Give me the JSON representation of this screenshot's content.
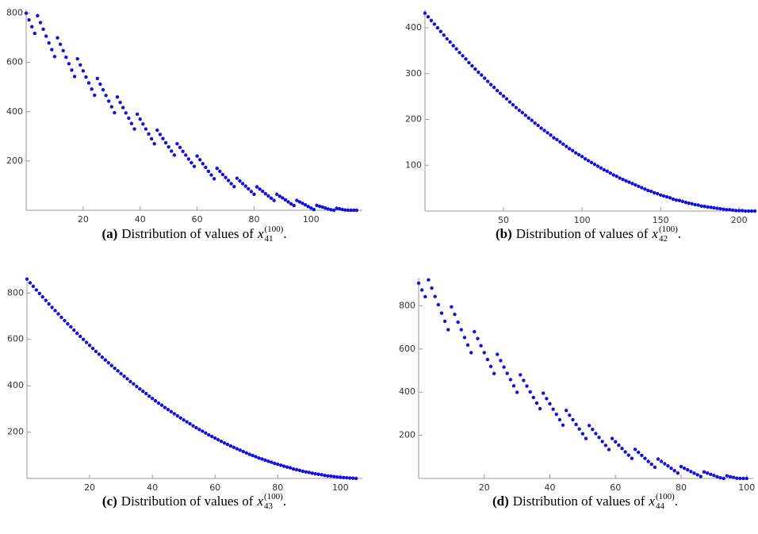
{
  "chart_data": [
    {
      "type": "scatter",
      "caption_label": "(a)",
      "caption": "Distribution of values of",
      "caption_var": "x",
      "caption_sub": "41",
      "caption_sup": "(100)",
      "caption_end": ".",
      "xlim": [
        0,
        118
      ],
      "ylim": [
        0,
        815
      ],
      "xticks": [
        20,
        40,
        60,
        80,
        100
      ],
      "yticks": [
        200,
        400,
        600,
        800
      ],
      "series": [
        {
          "color": "#1212e0",
          "x": [
            0,
            1,
            2,
            3,
            4,
            5,
            6,
            7,
            8,
            9,
            10,
            11,
            12,
            13,
            14,
            15,
            16,
            17,
            18,
            19,
            20,
            21,
            22,
            23,
            24,
            25,
            26,
            27,
            28,
            29,
            30,
            31,
            32,
            33,
            34,
            35,
            36,
            37,
            38,
            39,
            40,
            41,
            42,
            43,
            44,
            45,
            46,
            47,
            48,
            49,
            50,
            51,
            52,
            53,
            54,
            55,
            56,
            57,
            58,
            59,
            60,
            61,
            62,
            63,
            64,
            65,
            66,
            67,
            68,
            69,
            70,
            71,
            72,
            73,
            74,
            75,
            76,
            77,
            78,
            79,
            80,
            81,
            82,
            83,
            84,
            85,
            86,
            87,
            88,
            89,
            90,
            91,
            92,
            93,
            94,
            95,
            96,
            97,
            98,
            99,
            100,
            101,
            102,
            103,
            104,
            105,
            106,
            107,
            108,
            109,
            110,
            111,
            112,
            113,
            114,
            115,
            116
          ],
          "values": [
            800,
            773,
            745,
            718,
            790,
            762,
            735,
            707,
            679,
            652,
            624,
            700,
            674,
            648,
            621,
            595,
            569,
            543,
            615,
            590,
            566,
            541,
            517,
            492,
            467,
            535,
            512,
            489,
            466,
            443,
            420,
            396,
            460,
            438,
            417,
            395,
            374,
            352,
            330,
            390,
            370,
            350,
            330,
            310,
            290,
            270,
            325,
            308,
            291,
            274,
            257,
            240,
            224,
            270,
            255,
            239,
            224,
            208,
            193,
            178,
            220,
            205,
            189,
            174,
            158,
            143,
            128,
            170,
            158,
            145,
            133,
            121,
            108,
            96,
            130,
            119,
            108,
            98,
            87,
            76,
            65,
            95,
            86,
            77,
            67,
            58,
            49,
            40,
            65,
            57,
            50,
            42,
            34,
            26,
            19,
            40,
            34,
            28,
            22,
            15,
            9,
            3,
            20,
            16,
            13,
            9,
            5,
            2,
            0,
            8,
            6,
            3,
            1,
            0,
            0,
            0,
            0
          ]
        }
      ]
    },
    {
      "type": "scatter",
      "caption_label": "(b)",
      "caption": "Distribution of values of",
      "caption_var": "x",
      "caption_sub": "42",
      "caption_sup": "(100)",
      "caption_end": ".",
      "xlim": [
        0,
        210
      ],
      "ylim": [
        0,
        440
      ],
      "xticks": [
        50,
        100,
        150,
        200
      ],
      "yticks": [
        100,
        200,
        300,
        400
      ],
      "series": [
        {
          "color": "#1212e0",
          "x": [
            0,
            2,
            4,
            6,
            8,
            10,
            12,
            14,
            16,
            18,
            20,
            22,
            24,
            26,
            28,
            30,
            32,
            34,
            36,
            38,
            40,
            42,
            44,
            46,
            48,
            50,
            52,
            54,
            56,
            58,
            60,
            62,
            64,
            66,
            68,
            70,
            72,
            74,
            76,
            78,
            80,
            82,
            84,
            86,
            88,
            90,
            92,
            94,
            96,
            98,
            100,
            102,
            104,
            106,
            108,
            110,
            112,
            114,
            116,
            118,
            120,
            122,
            124,
            126,
            128,
            130,
            132,
            134,
            136,
            138,
            140,
            142,
            144,
            146,
            148,
            150,
            152,
            154,
            156,
            158,
            160,
            162,
            164,
            166,
            168,
            170,
            172,
            174,
            176,
            178,
            180,
            182,
            184,
            186,
            188,
            190,
            192,
            194,
            196,
            198,
            200,
            202,
            204,
            206,
            208,
            210
          ],
          "values": [
            432,
            424,
            416,
            408,
            400,
            392,
            384,
            376,
            369,
            361,
            354,
            346,
            339,
            332,
            324,
            317,
            310,
            303,
            297,
            290,
            283,
            276,
            270,
            263,
            257,
            251,
            245,
            238,
            232,
            226,
            220,
            215,
            209,
            203,
            198,
            192,
            187,
            181,
            176,
            171,
            166,
            160,
            156,
            151,
            146,
            141,
            136,
            132,
            127,
            123,
            119,
            114,
            110,
            106,
            102,
            98,
            94,
            90,
            87,
            83,
            79,
            76,
            72,
            69,
            66,
            63,
            60,
            57,
            54,
            51,
            48,
            45,
            43,
            40,
            38,
            35,
            33,
            31,
            29,
            26,
            24,
            23,
            21,
            19,
            17,
            16,
            14,
            13,
            11,
            10,
            9,
            8,
            7,
            6,
            5,
            4,
            3,
            3,
            2,
            1,
            1,
            1,
            0,
            0,
            0,
            0
          ]
        }
      ]
    },
    {
      "type": "scatter",
      "caption_label": "(c)",
      "caption": "Distribution of values of",
      "caption_var": "x",
      "caption_sub": "43",
      "caption_sup": "(100)",
      "caption_end": ".",
      "xlim": [
        0,
        107
      ],
      "ylim": [
        0,
        866
      ],
      "xticks": [
        20,
        40,
        60,
        80,
        100
      ],
      "yticks": [
        200,
        400,
        600,
        800
      ],
      "series": [
        {
          "color": "#1212e0",
          "x": [
            0,
            1,
            2,
            3,
            4,
            5,
            6,
            7,
            8,
            9,
            10,
            11,
            12,
            13,
            14,
            15,
            16,
            17,
            18,
            19,
            20,
            21,
            22,
            23,
            24,
            25,
            26,
            27,
            28,
            29,
            30,
            31,
            32,
            33,
            34,
            35,
            36,
            37,
            38,
            39,
            40,
            41,
            42,
            43,
            44,
            45,
            46,
            47,
            48,
            49,
            50,
            51,
            52,
            53,
            54,
            55,
            56,
            57,
            58,
            59,
            60,
            61,
            62,
            63,
            64,
            65,
            66,
            67,
            68,
            69,
            70,
            71,
            72,
            73,
            74,
            75,
            76,
            77,
            78,
            79,
            80,
            81,
            82,
            83,
            84,
            85,
            86,
            87,
            88,
            89,
            90,
            91,
            92,
            93,
            94,
            95,
            96,
            97,
            98,
            99,
            100,
            101,
            102,
            103,
            104,
            105
          ],
          "values": [
            860,
            844,
            829,
            813,
            798,
            783,
            768,
            753,
            738,
            724,
            710,
            695,
            681,
            667,
            654,
            640,
            626,
            613,
            600,
            587,
            574,
            561,
            548,
            536,
            523,
            511,
            499,
            487,
            475,
            464,
            452,
            441,
            430,
            418,
            408,
            397,
            386,
            376,
            366,
            355,
            345,
            335,
            325,
            316,
            306,
            297,
            288,
            279,
            270,
            261,
            252,
            244,
            236,
            227,
            219,
            211,
            204,
            196,
            188,
            181,
            174,
            167,
            160,
            153,
            147,
            140,
            134,
            128,
            122,
            116,
            110,
            104,
            99,
            94,
            88,
            84,
            79,
            74,
            70,
            65,
            61,
            57,
            53,
            49,
            46,
            41,
            38,
            35,
            31,
            28,
            26,
            23,
            20,
            18,
            16,
            13,
            11,
            10,
            8,
            6,
            5,
            4,
            3,
            2,
            1,
            0
          ]
        }
      ]
    },
    {
      "type": "scatter",
      "caption_label": "(d)",
      "caption": "Distribution of values of",
      "caption_var": "x",
      "caption_sub": "44",
      "caption_sup": "(100)",
      "caption_end": ".",
      "xlim": [
        0,
        102
      ],
      "ylim": [
        0,
        930
      ],
      "xticks": [
        20,
        40,
        60,
        80,
        100
      ],
      "yticks": [
        200,
        400,
        600,
        800
      ],
      "series": [
        {
          "color": "#1212e0",
          "x": [
            0,
            1,
            2,
            3,
            4,
            5,
            6,
            7,
            8,
            9,
            10,
            11,
            12,
            13,
            14,
            15,
            16,
            17,
            18,
            19,
            20,
            21,
            22,
            23,
            24,
            25,
            26,
            27,
            28,
            29,
            30,
            31,
            32,
            33,
            34,
            35,
            36,
            37,
            38,
            39,
            40,
            41,
            42,
            43,
            44,
            45,
            46,
            47,
            48,
            49,
            50,
            51,
            52,
            53,
            54,
            55,
            56,
            57,
            58,
            59,
            60,
            61,
            62,
            63,
            64,
            65,
            66,
            67,
            68,
            69,
            70,
            71,
            72,
            73,
            74,
            75,
            76,
            77,
            78,
            79,
            80,
            81,
            82,
            83,
            84,
            85,
            86,
            87,
            88,
            89,
            90,
            91,
            92,
            93,
            94,
            95,
            96,
            97,
            98,
            99,
            100
          ],
          "values": [
            905,
            873,
            842,
            920,
            882,
            843,
            805,
            766,
            728,
            689,
            795,
            760,
            724,
            689,
            653,
            618,
            583,
            680,
            648,
            615,
            583,
            551,
            519,
            486,
            575,
            546,
            516,
            487,
            458,
            429,
            399,
            480,
            454,
            428,
            401,
            375,
            349,
            323,
            395,
            370,
            346,
            321,
            297,
            272,
            247,
            315,
            293,
            272,
            250,
            229,
            207,
            185,
            245,
            227,
            208,
            190,
            171,
            153,
            134,
            185,
            170,
            154,
            139,
            123,
            108,
            93,
            135,
            121,
            107,
            93,
            79,
            66,
            52,
            90,
            79,
            68,
            58,
            47,
            36,
            25,
            55,
            47,
            40,
            32,
            24,
            17,
            9,
            30,
            25,
            19,
            14,
            8,
            3,
            0,
            12,
            8,
            5,
            1,
            0,
            0,
            0
          ]
        }
      ]
    }
  ]
}
